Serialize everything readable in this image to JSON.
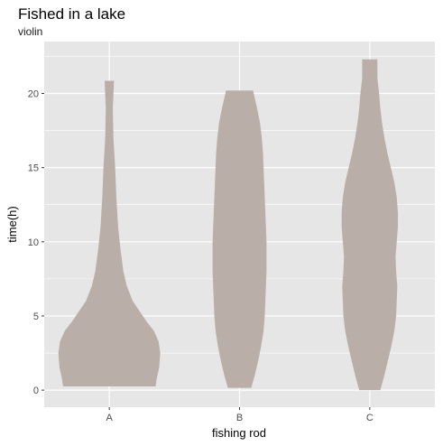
{
  "chart_data": {
    "type": "violin",
    "title": "Fished in a lake",
    "subtitle": "violin",
    "xlabel": "fishing rod",
    "ylabel": "time(h)",
    "categories": [
      "A",
      "B",
      "C"
    ],
    "y_ticks": [
      0,
      5,
      10,
      15,
      20
    ],
    "ylim": [
      -1.15,
      23.5
    ],
    "grid": true,
    "fill_color": "#b9afa8",
    "panel_color": "#e6e6e6",
    "gridline_color": "#ffffff",
    "violins": [
      {
        "category": "A",
        "y_min": 0.25,
        "y_max": 20.85,
        "profile": [
          [
            0.25,
            0.79
          ],
          [
            0.8,
            0.81
          ],
          [
            1.5,
            0.85
          ],
          [
            2.5,
            0.87
          ],
          [
            3.3,
            0.84
          ],
          [
            4.0,
            0.76
          ],
          [
            4.6,
            0.64
          ],
          [
            5.3,
            0.52
          ],
          [
            6.0,
            0.4
          ],
          [
            7.0,
            0.3
          ],
          [
            8.0,
            0.24
          ],
          [
            9.5,
            0.19
          ],
          [
            11.0,
            0.15
          ],
          [
            13.0,
            0.12
          ],
          [
            15.0,
            0.1
          ],
          [
            17.0,
            0.07
          ],
          [
            19.0,
            0.06
          ],
          [
            20.85,
            0.08
          ]
        ]
      },
      {
        "category": "B",
        "y_min": 0.15,
        "y_max": 20.2,
        "profile": [
          [
            0.15,
            0.2
          ],
          [
            1.0,
            0.26
          ],
          [
            2.0,
            0.32
          ],
          [
            3.0,
            0.37
          ],
          [
            4.0,
            0.41
          ],
          [
            5.0,
            0.43
          ],
          [
            6.0,
            0.44
          ],
          [
            7.0,
            0.45
          ],
          [
            8.0,
            0.46
          ],
          [
            9.0,
            0.46
          ],
          [
            10.0,
            0.46
          ],
          [
            11.0,
            0.45
          ],
          [
            12.0,
            0.44
          ],
          [
            13.0,
            0.43
          ],
          [
            14.0,
            0.42
          ],
          [
            15.0,
            0.41
          ],
          [
            16.0,
            0.4
          ],
          [
            17.0,
            0.38
          ],
          [
            18.0,
            0.35
          ],
          [
            19.0,
            0.3
          ],
          [
            20.2,
            0.23
          ]
        ]
      },
      {
        "category": "C",
        "y_min": 0.0,
        "y_max": 22.3,
        "profile": [
          [
            0.0,
            0.18
          ],
          [
            1.0,
            0.25
          ],
          [
            2.0,
            0.31
          ],
          [
            3.0,
            0.37
          ],
          [
            4.0,
            0.42
          ],
          [
            5.0,
            0.45
          ],
          [
            6.0,
            0.46
          ],
          [
            7.0,
            0.47
          ],
          [
            8.0,
            0.45
          ],
          [
            9.0,
            0.44
          ],
          [
            10.0,
            0.46
          ],
          [
            11.0,
            0.48
          ],
          [
            12.0,
            0.48
          ],
          [
            13.0,
            0.46
          ],
          [
            14.0,
            0.42
          ],
          [
            15.0,
            0.36
          ],
          [
            16.0,
            0.3
          ],
          [
            17.0,
            0.25
          ],
          [
            18.0,
            0.21
          ],
          [
            19.0,
            0.18
          ],
          [
            20.0,
            0.16
          ],
          [
            21.0,
            0.13
          ],
          [
            22.3,
            0.13
          ]
        ]
      }
    ]
  }
}
